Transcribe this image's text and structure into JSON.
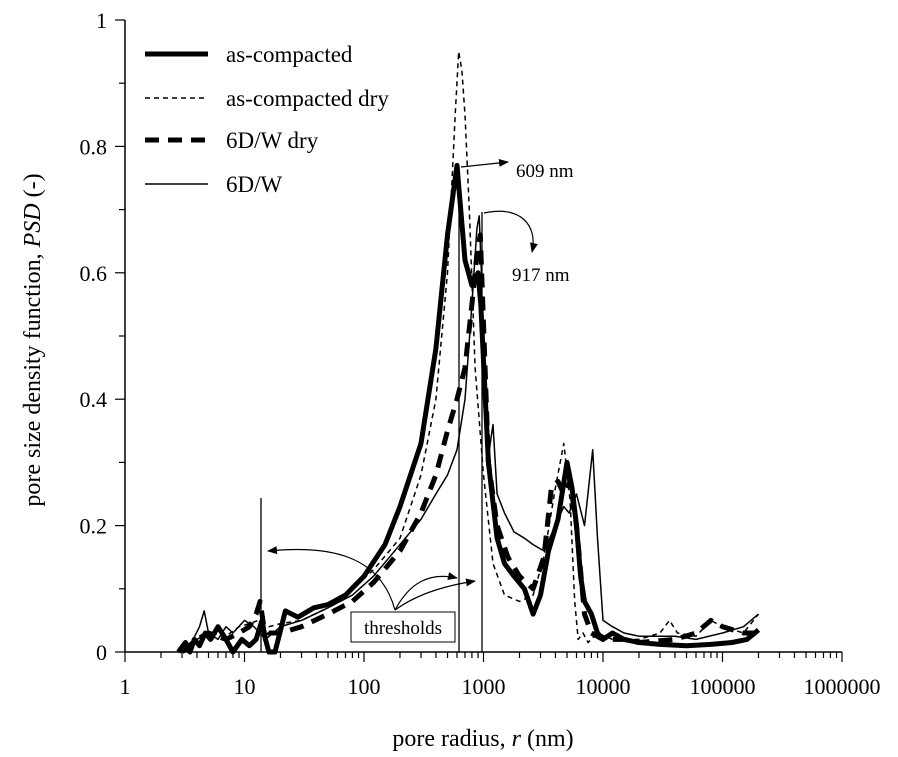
{
  "chart_data": {
    "type": "line",
    "xscale": "log",
    "xlabel_prefix": "pore radius, ",
    "xlabel_var": "r",
    "xlabel_suffix": " (nm)",
    "ylabel_prefix": "pore size density function, ",
    "ylabel_var": "PSD",
    "ylabel_suffix": " (-)",
    "xlim": [
      1,
      1000000
    ],
    "ylim": [
      0,
      1
    ],
    "x_ticks": [
      1,
      10,
      100,
      1000,
      10000,
      100000,
      1000000
    ],
    "x_tick_labels": [
      "1",
      "10",
      "100",
      "1000",
      "10000",
      "100000",
      "1000000"
    ],
    "y_ticks": [
      0,
      0.2,
      0.4,
      0.6,
      0.8,
      1
    ],
    "y_tick_labels": [
      "0",
      "0.2",
      "0.4",
      "0.6",
      "0.8",
      "1"
    ],
    "grid": false,
    "legend_position": "top-left",
    "series": [
      {
        "name": "as-compacted",
        "color": "#000000",
        "style": "solid-thick",
        "points": [
          [
            2.8,
            0
          ],
          [
            3.2,
            0.015
          ],
          [
            3.5,
            0
          ],
          [
            3.8,
            0.02
          ],
          [
            4.2,
            0.01
          ],
          [
            4.7,
            0.03
          ],
          [
            5.2,
            0.02
          ],
          [
            6,
            0.04
          ],
          [
            7,
            0.02
          ],
          [
            8,
            0
          ],
          [
            9.5,
            0.02
          ],
          [
            11,
            0.01
          ],
          [
            12.5,
            0.02
          ],
          [
            14,
            0.05
          ],
          [
            15,
            0.02
          ],
          [
            16,
            0
          ],
          [
            18,
            0
          ],
          [
            22,
            0.065
          ],
          [
            28,
            0.055
          ],
          [
            38,
            0.07
          ],
          [
            50,
            0.075
          ],
          [
            70,
            0.09
          ],
          [
            100,
            0.12
          ],
          [
            150,
            0.17
          ],
          [
            200,
            0.23
          ],
          [
            300,
            0.33
          ],
          [
            400,
            0.48
          ],
          [
            500,
            0.66
          ],
          [
            600,
            0.77
          ],
          [
            700,
            0.62
          ],
          [
            800,
            0.58
          ],
          [
            900,
            0.6
          ],
          [
            950,
            0.55
          ],
          [
            1100,
            0.3
          ],
          [
            1300,
            0.18
          ],
          [
            1500,
            0.14
          ],
          [
            1800,
            0.12
          ],
          [
            2200,
            0.1
          ],
          [
            2600,
            0.06
          ],
          [
            3000,
            0.09
          ],
          [
            3500,
            0.16
          ],
          [
            4200,
            0.21
          ],
          [
            5000,
            0.3
          ],
          [
            5500,
            0.26
          ],
          [
            6000,
            0.2
          ],
          [
            6500,
            0.12
          ],
          [
            7000,
            0.08
          ],
          [
            8000,
            0.06
          ],
          [
            9000,
            0.03
          ],
          [
            10000,
            0.02
          ],
          [
            12000,
            0.03
          ],
          [
            15000,
            0.02
          ],
          [
            20000,
            0.015
          ],
          [
            30000,
            0.012
          ],
          [
            50000,
            0.01
          ],
          [
            80000,
            0.012
          ],
          [
            120000,
            0.015
          ],
          [
            160000,
            0.02
          ],
          [
            200000,
            0.035
          ]
        ]
      },
      {
        "name": "as-compacted dry",
        "color": "#000000",
        "style": "dashed-thin",
        "points": [
          [
            3,
            0
          ],
          [
            4,
            0.02
          ],
          [
            5,
            0.03
          ],
          [
            7,
            0.025
          ],
          [
            9,
            0.04
          ],
          [
            11,
            0.045
          ],
          [
            13,
            0.05
          ],
          [
            16,
            0.04
          ],
          [
            20,
            0.045
          ],
          [
            30,
            0.05
          ],
          [
            50,
            0.07
          ],
          [
            80,
            0.1
          ],
          [
            120,
            0.13
          ],
          [
            200,
            0.18
          ],
          [
            300,
            0.28
          ],
          [
            400,
            0.4
          ],
          [
            500,
            0.6
          ],
          [
            580,
            0.85
          ],
          [
            620,
            0.95
          ],
          [
            660,
            0.92
          ],
          [
            700,
            0.85
          ],
          [
            760,
            0.7
          ],
          [
            850,
            0.45
          ],
          [
            1000,
            0.28
          ],
          [
            1200,
            0.14
          ],
          [
            1500,
            0.09
          ],
          [
            2000,
            0.08
          ],
          [
            2600,
            0.09
          ],
          [
            3200,
            0.15
          ],
          [
            4000,
            0.26
          ],
          [
            4700,
            0.33
          ],
          [
            5300,
            0.24
          ],
          [
            5800,
            0.08
          ],
          [
            6200,
            0.02
          ],
          [
            6800,
            0.03
          ],
          [
            7500,
            0.015
          ],
          [
            9000,
            0.03
          ],
          [
            12000,
            0.02
          ],
          [
            20000,
            0.02
          ],
          [
            30000,
            0.03
          ],
          [
            36000,
            0.05
          ],
          [
            42000,
            0.03
          ],
          [
            60000,
            0.025
          ],
          [
            80000,
            0.05
          ],
          [
            100000,
            0.04
          ],
          [
            150000,
            0.03
          ],
          [
            200000,
            0.06
          ]
        ]
      },
      {
        "name": "6D/W dry",
        "color": "#000000",
        "style": "dashed-thick",
        "points": [
          [
            3,
            0
          ],
          [
            4,
            0.02
          ],
          [
            5,
            0.03
          ],
          [
            7,
            0.02
          ],
          [
            9,
            0.03
          ],
          [
            11,
            0.04
          ],
          [
            12.5,
            0.06
          ],
          [
            13.5,
            0.08
          ],
          [
            14.5,
            0.04
          ],
          [
            16,
            0.03
          ],
          [
            20,
            0.03
          ],
          [
            30,
            0.04
          ],
          [
            50,
            0.06
          ],
          [
            80,
            0.08
          ],
          [
            120,
            0.11
          ],
          [
            200,
            0.16
          ],
          [
            300,
            0.22
          ],
          [
            400,
            0.28
          ],
          [
            500,
            0.35
          ],
          [
            600,
            0.4
          ],
          [
            700,
            0.45
          ],
          [
            800,
            0.55
          ],
          [
            880,
            0.63
          ],
          [
            940,
            0.66
          ],
          [
            1000,
            0.52
          ],
          [
            1100,
            0.3
          ],
          [
            1300,
            0.2
          ],
          [
            1600,
            0.15
          ],
          [
            2000,
            0.12
          ],
          [
            2600,
            0.1
          ],
          [
            3200,
            0.15
          ],
          [
            3700,
            0.26
          ],
          [
            4200,
            0.27
          ],
          [
            4700,
            0.25
          ],
          [
            5300,
            0.27
          ],
          [
            6000,
            0.2
          ],
          [
            7000,
            0.06
          ],
          [
            8000,
            0.03
          ],
          [
            10000,
            0.02
          ],
          [
            15000,
            0.02
          ],
          [
            20000,
            0.015
          ],
          [
            40000,
            0.02
          ],
          [
            60000,
            0.03
          ],
          [
            80000,
            0.05
          ],
          [
            100000,
            0.04
          ],
          [
            150000,
            0.03
          ],
          [
            200000,
            0.03
          ]
        ]
      },
      {
        "name": "6D/W",
        "color": "#000000",
        "style": "solid-thin",
        "points": [
          [
            2.8,
            0
          ],
          [
            3.5,
            0.01
          ],
          [
            4.2,
            0.04
          ],
          [
            4.6,
            0.065
          ],
          [
            5,
            0.03
          ],
          [
            6,
            0.02
          ],
          [
            7,
            0.04
          ],
          [
            8,
            0.03
          ],
          [
            10,
            0.05
          ],
          [
            12,
            0.04
          ],
          [
            15,
            0.02
          ],
          [
            20,
            0.04
          ],
          [
            30,
            0.05
          ],
          [
            50,
            0.07
          ],
          [
            80,
            0.09
          ],
          [
            120,
            0.12
          ],
          [
            200,
            0.17
          ],
          [
            300,
            0.21
          ],
          [
            400,
            0.25
          ],
          [
            500,
            0.28
          ],
          [
            600,
            0.32
          ],
          [
            700,
            0.4
          ],
          [
            800,
            0.55
          ],
          [
            880,
            0.67
          ],
          [
            920,
            0.69
          ],
          [
            960,
            0.6
          ],
          [
            1000,
            0.4
          ],
          [
            1100,
            0.31
          ],
          [
            1200,
            0.36
          ],
          [
            1300,
            0.25
          ],
          [
            1500,
            0.22
          ],
          [
            1800,
            0.19
          ],
          [
            2200,
            0.18
          ],
          [
            2600,
            0.17
          ],
          [
            3200,
            0.16
          ],
          [
            4000,
            0.2
          ],
          [
            4700,
            0.23
          ],
          [
            5200,
            0.22
          ],
          [
            6000,
            0.25
          ],
          [
            7000,
            0.2
          ],
          [
            8200,
            0.32
          ],
          [
            9000,
            0.18
          ],
          [
            10000,
            0.05
          ],
          [
            12000,
            0.04
          ],
          [
            15000,
            0.03
          ],
          [
            20000,
            0.025
          ],
          [
            40000,
            0.025
          ],
          [
            60000,
            0.02
          ],
          [
            100000,
            0.03
          ],
          [
            150000,
            0.04
          ],
          [
            200000,
            0.06
          ]
        ]
      }
    ],
    "annotations": {
      "peak1_label": "609 nm",
      "peak2_label": "917 nm",
      "thresholds_label": "thresholds",
      "threshold_values": [
        13,
        609,
        917
      ]
    }
  }
}
